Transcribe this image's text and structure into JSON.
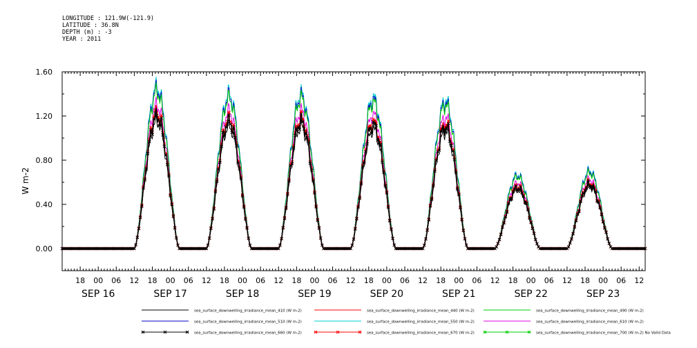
{
  "header": {
    "longitude": "LONGITUDE : 121.9W(-121.9)",
    "latitude": "LATITUDE : 36.8N",
    "depth": "DEPTH (m) : -3",
    "year": "YEAR : 2011"
  },
  "chart_data": {
    "type": "line",
    "title": "",
    "xlabel": "",
    "ylabel": "W m-2",
    "ylim": [
      -0.2,
      1.6
    ],
    "y_ticks": [
      "0.00",
      "0.40",
      "0.80",
      "1.20",
      "1.60"
    ],
    "x_range_hours": [
      "2011-09-15T12:00",
      "2011-09-23T14:00"
    ],
    "x_tick_labels": [
      "18",
      "00",
      "06",
      "12",
      "18",
      "00",
      "06",
      "12",
      "18",
      "00",
      "06",
      "12",
      "18",
      "00",
      "06",
      "12",
      "18",
      "00",
      "06",
      "12",
      "18",
      "00",
      "06",
      "12",
      "18",
      "00",
      "06",
      "12",
      "18",
      "00",
      "06",
      "12"
    ],
    "date_labels": [
      "SEP 16",
      "SEP 17",
      "SEP 18",
      "SEP 19",
      "SEP 20",
      "SEP 21",
      "SEP 22",
      "SEP 23"
    ],
    "daily_peak_hour_local_utc": 19.5,
    "daily_peaks_410": [
      1.2,
      1.15,
      1.15,
      1.12,
      1.1,
      0.55,
      0.58,
      0.0
    ],
    "series": [
      {
        "name": "sea_surface_downwelling_irradiance_mean_410 (W m-2)",
        "color": "#000000",
        "scale": 0.96,
        "marker": "none"
      },
      {
        "name": "sea_surface_downwelling_irradiance_mean_440 (W m-2)",
        "color": "#ff0000",
        "scale": 1.0,
        "marker": "none"
      },
      {
        "name": "sea_surface_downwelling_irradiance_mean_490 (W m-2)",
        "color": "#00cc00",
        "scale": 1.18,
        "marker": "none"
      },
      {
        "name": "sea_surface_downwelling_irradiance_mean_510 (W m-2)",
        "color": "#0000cc",
        "scale": 1.2,
        "marker": "none"
      },
      {
        "name": "sea_surface_downwelling_irradiance_mean_550 (W m-2)",
        "color": "#00cccc",
        "scale": 1.22,
        "marker": "none"
      },
      {
        "name": "sea_surface_downwelling_irradiance_mean_610 (W m-2)",
        "color": "#dd00dd",
        "scale": 1.08,
        "marker": "none"
      },
      {
        "name": "sea_surface_downwelling_irradiance_mean_660 (W m-2)",
        "color": "#000000",
        "scale": 1.0,
        "marker": "x"
      },
      {
        "name": "sea_surface_downwelling_irradiance_mean_670 (W m-2)",
        "color": "#ff0000",
        "scale": 1.02,
        "marker": "x"
      },
      {
        "name": "sea_surface_downwelling_irradiance_mean_700 (W m-2) No Valid Data",
        "color": "#00cc00",
        "scale": 0,
        "marker": "x"
      }
    ]
  }
}
